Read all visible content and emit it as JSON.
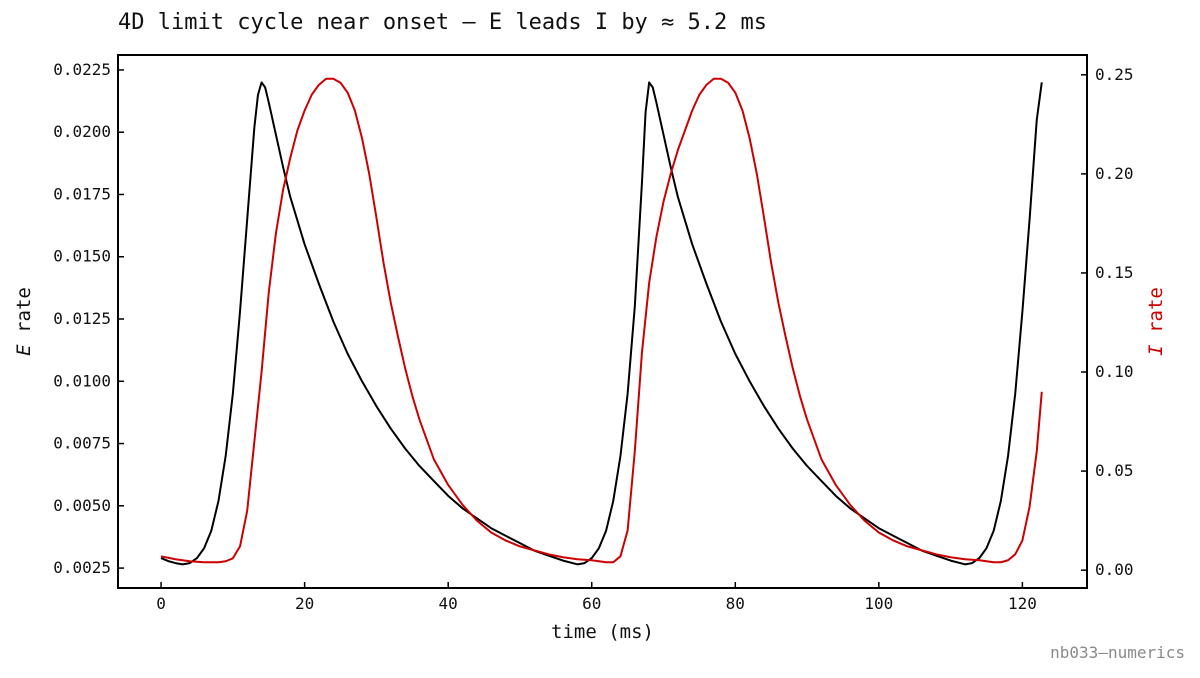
{
  "chart_data": {
    "type": "line",
    "title": "4D limit cycle near onset — E leads I by ≈ 5.2 ms",
    "xlabel": "time (ms)",
    "ylabel_left": {
      "var": "E",
      "suffix": " rate"
    },
    "ylabel_right": {
      "var": "I",
      "suffix": " rate"
    },
    "xlim": [
      -6,
      129
    ],
    "ylim_left": [
      0.0017,
      0.0231
    ],
    "ylim_right": [
      -0.009,
      0.26
    ],
    "x_ticks": [
      0,
      20,
      40,
      60,
      80,
      100,
      120
    ],
    "y_left_ticks": [
      "0.0025",
      "0.0050",
      "0.0075",
      "0.0100",
      "0.0125",
      "0.0150",
      "0.0175",
      "0.0200",
      "0.0225"
    ],
    "y_right_ticks": [
      "0.00",
      "0.05",
      "0.10",
      "0.15",
      "0.20",
      "0.25"
    ],
    "grid": false,
    "series": [
      {
        "var": "E",
        "axis": "left",
        "color": "#000000",
        "points": [
          [
            0,
            0.0029
          ],
          [
            1,
            0.00278
          ],
          [
            2,
            0.0027
          ],
          [
            3,
            0.00265
          ],
          [
            4,
            0.0027
          ],
          [
            5,
            0.0029
          ],
          [
            6,
            0.0033
          ],
          [
            7,
            0.004
          ],
          [
            8,
            0.0052
          ],
          [
            9,
            0.007
          ],
          [
            10,
            0.0095
          ],
          [
            11,
            0.0128
          ],
          [
            12,
            0.0165
          ],
          [
            13,
            0.0202
          ],
          [
            13.5,
            0.0215
          ],
          [
            14,
            0.022
          ],
          [
            14.5,
            0.0218
          ],
          [
            15,
            0.0212
          ],
          [
            16,
            0.0199
          ],
          [
            17,
            0.0186
          ],
          [
            18,
            0.0174
          ],
          [
            20,
            0.0155
          ],
          [
            22,
            0.0139
          ],
          [
            24,
            0.0124
          ],
          [
            26,
            0.0111
          ],
          [
            28,
            0.01
          ],
          [
            30,
            0.009
          ],
          [
            32,
            0.0081
          ],
          [
            34,
            0.0073
          ],
          [
            36,
            0.0066
          ],
          [
            38,
            0.006
          ],
          [
            40,
            0.0054
          ],
          [
            42,
            0.0049
          ],
          [
            44,
            0.0045
          ],
          [
            46,
            0.0041
          ],
          [
            48,
            0.0038
          ],
          [
            50,
            0.0035
          ],
          [
            52,
            0.0032
          ],
          [
            54,
            0.003
          ],
          [
            56,
            0.0028
          ],
          [
            58,
            0.00265
          ],
          [
            59,
            0.0027
          ],
          [
            60,
            0.0029
          ],
          [
            61,
            0.0033
          ],
          [
            62,
            0.004
          ],
          [
            63,
            0.0052
          ],
          [
            64,
            0.007
          ],
          [
            65,
            0.0095
          ],
          [
            66,
            0.013
          ],
          [
            67,
            0.018
          ],
          [
            67.5,
            0.0208
          ],
          [
            68,
            0.022
          ],
          [
            68.5,
            0.0218
          ],
          [
            69,
            0.0212
          ],
          [
            70,
            0.0199
          ],
          [
            71,
            0.0186
          ],
          [
            72,
            0.0174
          ],
          [
            74,
            0.0155
          ],
          [
            76,
            0.0139
          ],
          [
            78,
            0.0124
          ],
          [
            80,
            0.0111
          ],
          [
            82,
            0.01
          ],
          [
            84,
            0.009
          ],
          [
            86,
            0.0081
          ],
          [
            88,
            0.0073
          ],
          [
            90,
            0.0066
          ],
          [
            92,
            0.006
          ],
          [
            94,
            0.0054
          ],
          [
            96,
            0.0049
          ],
          [
            98,
            0.0045
          ],
          [
            100,
            0.0041
          ],
          [
            102,
            0.0038
          ],
          [
            104,
            0.0035
          ],
          [
            106,
            0.0032
          ],
          [
            108,
            0.003
          ],
          [
            110,
            0.0028
          ],
          [
            112,
            0.00265
          ],
          [
            113,
            0.0027
          ],
          [
            114,
            0.0029
          ],
          [
            115,
            0.0033
          ],
          [
            116,
            0.004
          ],
          [
            117,
            0.0052
          ],
          [
            118,
            0.007
          ],
          [
            119,
            0.0095
          ],
          [
            120,
            0.0128
          ],
          [
            121,
            0.0165
          ],
          [
            122,
            0.0205
          ],
          [
            122.7,
            0.022
          ]
        ]
      },
      {
        "var": "I",
        "axis": "right",
        "color": "#cc0000",
        "points": [
          [
            0,
            0.007
          ],
          [
            2,
            0.0055
          ],
          [
            4,
            0.0045
          ],
          [
            6,
            0.004
          ],
          [
            8,
            0.004
          ],
          [
            9,
            0.0045
          ],
          [
            10,
            0.006
          ],
          [
            11,
            0.012
          ],
          [
            12,
            0.03
          ],
          [
            13,
            0.065
          ],
          [
            14,
            0.1
          ],
          [
            15,
            0.14
          ],
          [
            16,
            0.17
          ],
          [
            17,
            0.192
          ],
          [
            18,
            0.208
          ],
          [
            19,
            0.222
          ],
          [
            20,
            0.232
          ],
          [
            21,
            0.24
          ],
          [
            22,
            0.245
          ],
          [
            23,
            0.248
          ],
          [
            24,
            0.248
          ],
          [
            25,
            0.246
          ],
          [
            26,
            0.241
          ],
          [
            27,
            0.232
          ],
          [
            28,
            0.218
          ],
          [
            29,
            0.2
          ],
          [
            30,
            0.178
          ],
          [
            31,
            0.155
          ],
          [
            32,
            0.135
          ],
          [
            33,
            0.118
          ],
          [
            34,
            0.102
          ],
          [
            35,
            0.088
          ],
          [
            36,
            0.076
          ],
          [
            38,
            0.056
          ],
          [
            40,
            0.043
          ],
          [
            42,
            0.033
          ],
          [
            44,
            0.025
          ],
          [
            46,
            0.019
          ],
          [
            48,
            0.015
          ],
          [
            50,
            0.012
          ],
          [
            52,
            0.01
          ],
          [
            54,
            0.008
          ],
          [
            56,
            0.0065
          ],
          [
            58,
            0.0055
          ],
          [
            60,
            0.005
          ],
          [
            62,
            0.004
          ],
          [
            63,
            0.004
          ],
          [
            64,
            0.007
          ],
          [
            65,
            0.02
          ],
          [
            66,
            0.06
          ],
          [
            67,
            0.11
          ],
          [
            68,
            0.145
          ],
          [
            69,
            0.168
          ],
          [
            70,
            0.186
          ],
          [
            71,
            0.2
          ],
          [
            72,
            0.212
          ],
          [
            73,
            0.222
          ],
          [
            74,
            0.232
          ],
          [
            75,
            0.24
          ],
          [
            76,
            0.245
          ],
          [
            77,
            0.248
          ],
          [
            78,
            0.248
          ],
          [
            79,
            0.246
          ],
          [
            80,
            0.241
          ],
          [
            81,
            0.232
          ],
          [
            82,
            0.218
          ],
          [
            83,
            0.2
          ],
          [
            84,
            0.178
          ],
          [
            85,
            0.155
          ],
          [
            86,
            0.135
          ],
          [
            87,
            0.118
          ],
          [
            88,
            0.102
          ],
          [
            89,
            0.088
          ],
          [
            90,
            0.076
          ],
          [
            92,
            0.056
          ],
          [
            94,
            0.043
          ],
          [
            96,
            0.033
          ],
          [
            98,
            0.025
          ],
          [
            100,
            0.019
          ],
          [
            102,
            0.015
          ],
          [
            104,
            0.012
          ],
          [
            106,
            0.01
          ],
          [
            108,
            0.008
          ],
          [
            110,
            0.0065
          ],
          [
            112,
            0.0055
          ],
          [
            114,
            0.005
          ],
          [
            116,
            0.004
          ],
          [
            117,
            0.004
          ],
          [
            118,
            0.005
          ],
          [
            119,
            0.008
          ],
          [
            120,
            0.015
          ],
          [
            121,
            0.032
          ],
          [
            122,
            0.06
          ],
          [
            122.7,
            0.09
          ]
        ]
      }
    ]
  },
  "footer": "nb033—numerics"
}
